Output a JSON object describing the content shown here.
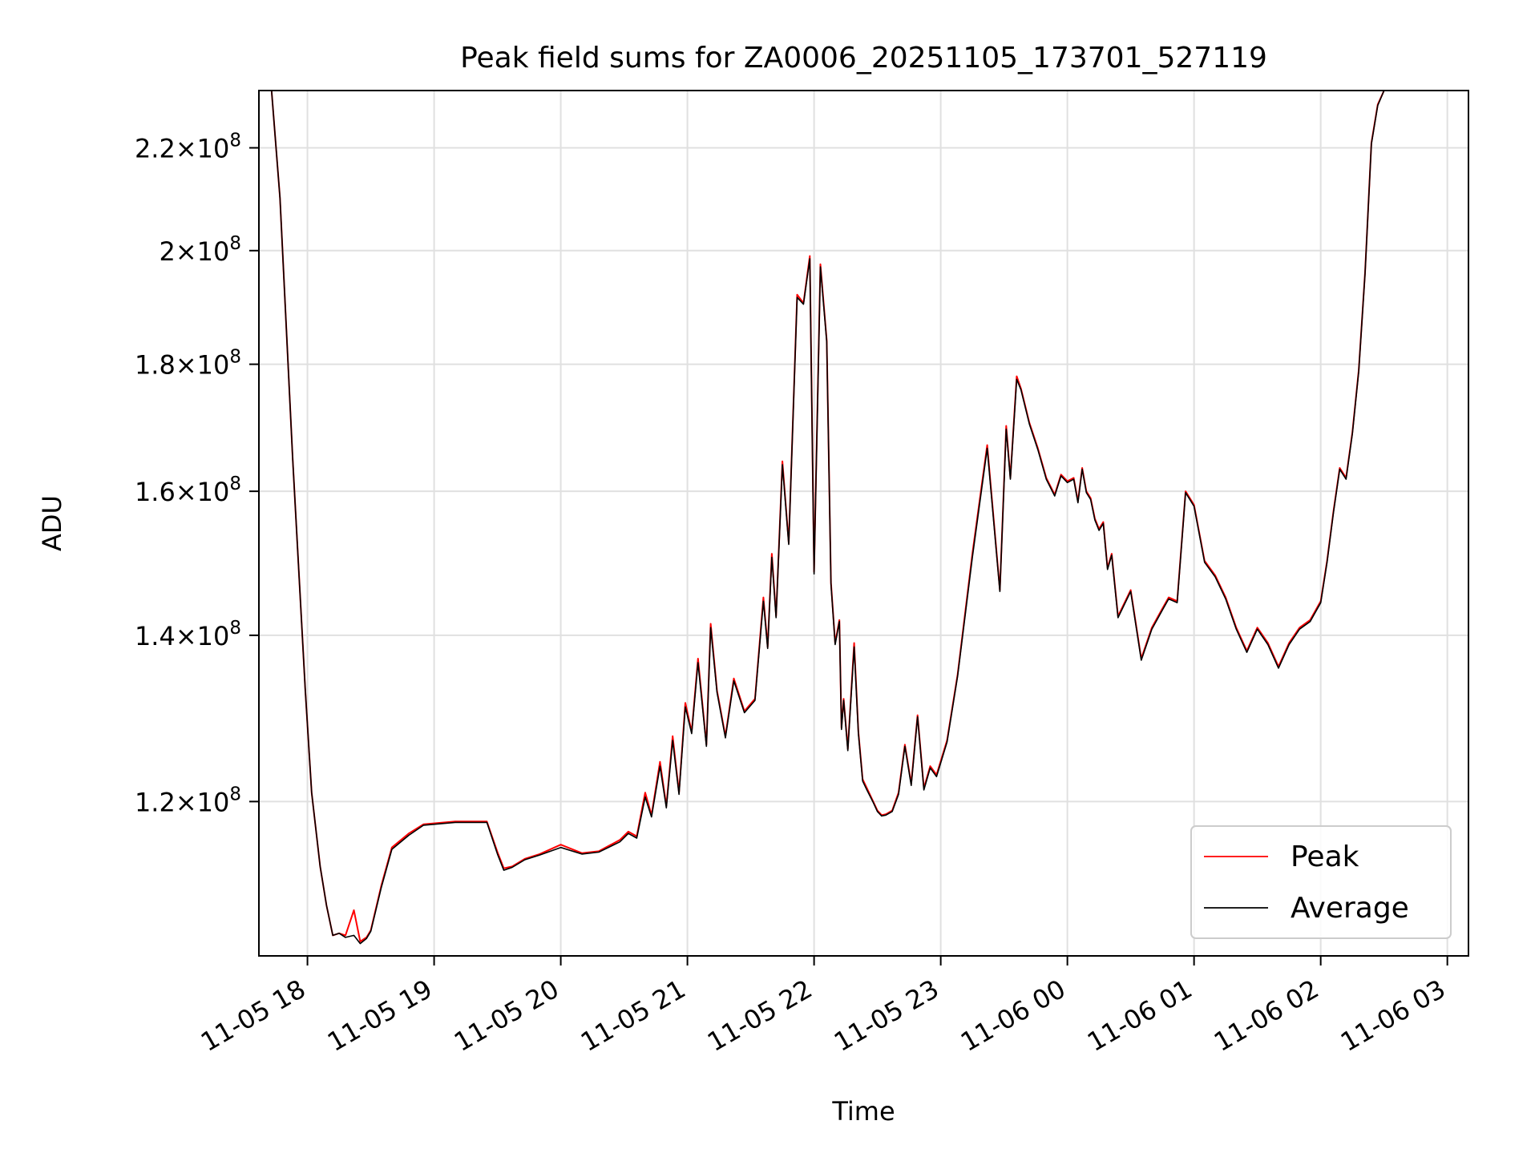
{
  "chart_data": {
    "type": "line",
    "title": "Peak field sums for ZA0006_20251105_173701_527119",
    "xlabel": "Time",
    "ylabel": "ADU",
    "yscale": "log",
    "grid": true,
    "legend_position": "lower right",
    "xlim": [
      "2025-11-05 17:37",
      "2025-11-06 03:10"
    ],
    "ylim": [
      104000000,
      232000000
    ],
    "x_ticks": [
      {
        "value": "2025-11-05 18:00",
        "label": "11-05 18"
      },
      {
        "value": "2025-11-05 19:00",
        "label": "11-05 19"
      },
      {
        "value": "2025-11-05 20:00",
        "label": "11-05 20"
      },
      {
        "value": "2025-11-05 21:00",
        "label": "11-05 21"
      },
      {
        "value": "2025-11-05 22:00",
        "label": "11-05 22"
      },
      {
        "value": "2025-11-05 23:00",
        "label": "11-05 23"
      },
      {
        "value": "2025-11-06 00:00",
        "label": "11-06 00"
      },
      {
        "value": "2025-11-06 01:00",
        "label": "11-06 01"
      },
      {
        "value": "2025-11-06 02:00",
        "label": "11-06 02"
      },
      {
        "value": "2025-11-06 03:00",
        "label": "11-06 03"
      }
    ],
    "y_ticks": [
      {
        "value": 120000000,
        "mantissa": "1.2",
        "base": "10",
        "exponent": "8"
      },
      {
        "value": 140000000,
        "mantissa": "1.4",
        "base": "10",
        "exponent": "8"
      },
      {
        "value": 160000000,
        "mantissa": "1.6",
        "base": "10",
        "exponent": "8"
      },
      {
        "value": 180000000,
        "mantissa": "1.8",
        "base": "10",
        "exponent": "8"
      },
      {
        "value": 200000000,
        "mantissa": "2",
        "base": "10",
        "exponent": "8"
      },
      {
        "value": 220000000,
        "mantissa": "2.2",
        "base": "10",
        "exponent": "8"
      }
    ],
    "times_label": "x values: timestamps (YYYY-MM-DD HH:MM), shared by both series",
    "x": [
      "2025-11-05 17:43",
      "2025-11-05 17:47",
      "2025-11-05 17:53",
      "2025-11-05 17:59",
      "2025-11-05 18:02",
      "2025-11-05 18:06",
      "2025-11-05 18:09",
      "2025-11-05 18:12",
      "2025-11-05 18:15",
      "2025-11-05 18:18",
      "2025-11-05 18:22",
      "2025-11-05 18:25",
      "2025-11-05 18:28",
      "2025-11-05 18:30",
      "2025-11-05 18:35",
      "2025-11-05 18:40",
      "2025-11-05 18:48",
      "2025-11-05 18:55",
      "2025-11-05 19:10",
      "2025-11-05 19:25",
      "2025-11-05 19:30",
      "2025-11-05 19:33",
      "2025-11-05 19:37",
      "2025-11-05 19:43",
      "2025-11-05 19:50",
      "2025-11-05 20:00",
      "2025-11-05 20:10",
      "2025-11-05 20:18",
      "2025-11-05 20:28",
      "2025-11-05 20:32",
      "2025-11-05 20:36",
      "2025-11-05 20:40",
      "2025-11-05 20:43",
      "2025-11-05 20:47",
      "2025-11-05 20:50",
      "2025-11-05 20:53",
      "2025-11-05 20:56",
      "2025-11-05 20:59",
      "2025-11-05 21:02",
      "2025-11-05 21:05",
      "2025-11-05 21:09",
      "2025-11-05 21:11",
      "2025-11-05 21:14",
      "2025-11-05 21:18",
      "2025-11-05 21:22",
      "2025-11-05 21:27",
      "2025-11-05 21:32",
      "2025-11-05 21:36",
      "2025-11-05 21:38",
      "2025-11-05 21:40",
      "2025-11-05 21:42",
      "2025-11-05 21:45",
      "2025-11-05 21:48",
      "2025-11-05 21:52",
      "2025-11-05 21:55",
      "2025-11-05 21:58",
      "2025-11-05 22:00",
      "2025-11-05 22:03",
      "2025-11-05 22:06",
      "2025-11-05 22:08",
      "2025-11-05 22:10",
      "2025-11-05 22:12",
      "2025-11-05 22:13",
      "2025-11-05 22:14",
      "2025-11-05 22:16",
      "2025-11-05 22:19",
      "2025-11-05 22:21",
      "2025-11-05 22:23",
      "2025-11-05 22:25",
      "2025-11-05 22:28",
      "2025-11-05 22:30",
      "2025-11-05 22:32",
      "2025-11-05 22:34",
      "2025-11-05 22:37",
      "2025-11-05 22:40",
      "2025-11-05 22:43",
      "2025-11-05 22:46",
      "2025-11-05 22:49",
      "2025-11-05 22:52",
      "2025-11-05 22:55",
      "2025-11-05 22:58",
      "2025-11-05 23:03",
      "2025-11-05 23:08",
      "2025-11-05 23:15",
      "2025-11-05 23:22",
      "2025-11-05 23:28",
      "2025-11-05 23:31",
      "2025-11-05 23:33",
      "2025-11-05 23:36",
      "2025-11-05 23:38",
      "2025-11-05 23:42",
      "2025-11-05 23:46",
      "2025-11-05 23:50",
      "2025-11-05 23:54",
      "2025-11-05 23:57",
      "2025-11-06 00:00",
      "2025-11-06 00:03",
      "2025-11-06 00:05",
      "2025-11-06 00:07",
      "2025-11-06 00:09",
      "2025-11-06 00:11",
      "2025-11-06 00:13",
      "2025-11-06 00:15",
      "2025-11-06 00:17",
      "2025-11-06 00:19",
      "2025-11-06 00:21",
      "2025-11-06 00:24",
      "2025-11-06 00:30",
      "2025-11-06 00:35",
      "2025-11-06 00:40",
      "2025-11-06 00:45",
      "2025-11-06 00:48",
      "2025-11-06 00:52",
      "2025-11-06 00:56",
      "2025-11-06 01:00",
      "2025-11-06 01:05",
      "2025-11-06 01:10",
      "2025-11-06 01:15",
      "2025-11-06 01:20",
      "2025-11-06 01:25",
      "2025-11-06 01:30",
      "2025-11-06 01:35",
      "2025-11-06 01:40",
      "2025-11-06 01:45",
      "2025-11-06 01:50",
      "2025-11-06 01:55",
      "2025-11-06 02:00",
      "2025-11-06 02:03",
      "2025-11-06 02:06",
      "2025-11-06 02:09",
      "2025-11-06 02:12",
      "2025-11-06 02:15",
      "2025-11-06 02:18",
      "2025-11-06 02:21",
      "2025-11-06 02:24",
      "2025-11-06 02:27",
      "2025-11-06 02:30",
      "2025-11-06 02:33",
      "2025-11-06 02:36",
      "2025-11-06 02:40",
      "2025-11-06 02:44",
      "2025-11-06 02:48",
      "2025-11-06 02:52",
      "2025-11-06 02:56",
      "2025-11-06 03:00",
      "2025-11-06 03:02",
      "2025-11-06 03:05"
    ],
    "series": [
      {
        "name": "Peak",
        "color": "#ff0000",
        "values": [
          232000000,
          210000000,
          165000000,
          133000000,
          121000000,
          113000000,
          109000000,
          106000000,
          106200000,
          106000000,
          108500000,
          105400000,
          105800000,
          106500000,
          111000000,
          115000000,
          116500000,
          117500000,
          117800000,
          117800000,
          114500000,
          112800000,
          113000000,
          113800000,
          114300000,
          115300000,
          114400000,
          114600000,
          115800000,
          116700000,
          116200000,
          121000000,
          118500000,
          124500000,
          119500000,
          127500000,
          121000000,
          131500000,
          128000000,
          137000000,
          126500000,
          141500000,
          133000000,
          127500000,
          134500000,
          130500000,
          132000000,
          145000000,
          138500000,
          151000000,
          142500000,
          164500000,
          152500000,
          192000000,
          190500000,
          199000000,
          148500000,
          197500000,
          184000000,
          147000000,
          139000000,
          142000000,
          128500000,
          132000000,
          126000000,
          139000000,
          128000000,
          122500000,
          121500000,
          120000000,
          119000000,
          118500000,
          118600000,
          119000000,
          121000000,
          126500000,
          122000000,
          130000000,
          121500000,
          124000000,
          123000000,
          127000000,
          135000000,
          151000000,
          167000000,
          146000000,
          170000000,
          162000000,
          178000000,
          176000000,
          170500000,
          166500000,
          162000000,
          159500000,
          162500000,
          161500000,
          162000000,
          158500000,
          163500000,
          160000000,
          159000000,
          156000000,
          154500000,
          155500000,
          149000000,
          151000000,
          142500000,
          146000000,
          137000000,
          141000000,
          143500000,
          145000000,
          144500000,
          160000000,
          158000000,
          150000000,
          148000000,
          145000000,
          141000000,
          138000000,
          141000000,
          139000000,
          136000000,
          139000000,
          141000000,
          142000000,
          144500000,
          150000000,
          157000000,
          163500000,
          162000000,
          169000000,
          179000000,
          196000000,
          221000000,
          229000000,
          232000000,
          232000000,
          232000000,
          232000000,
          232000000,
          232000000,
          232000000,
          232000000,
          232000000,
          232000000,
          232000000
        ]
      },
      {
        "name": "Average",
        "color": "#000000",
        "values": [
          232000000,
          210000000,
          165000000,
          133000000,
          121000000,
          113000000,
          109000000,
          106000000,
          106200000,
          105800000,
          106000000,
          105200000,
          105700000,
          106400000,
          110800000,
          114800000,
          116300000,
          117400000,
          117700000,
          117700000,
          114300000,
          112600000,
          112900000,
          113700000,
          114200000,
          115000000,
          114300000,
          114500000,
          115600000,
          116500000,
          116000000,
          120500000,
          118300000,
          124000000,
          119300000,
          127000000,
          120800000,
          131000000,
          127800000,
          136500000,
          126300000,
          141000000,
          132800000,
          127300000,
          134200000,
          130300000,
          131800000,
          144500000,
          138300000,
          150500000,
          142300000,
          164000000,
          152300000,
          191500000,
          190300000,
          198500000,
          148200000,
          197000000,
          183800000,
          146800000,
          138800000,
          141800000,
          128300000,
          131800000,
          125800000,
          138500000,
          127800000,
          122300000,
          121300000,
          119900000,
          118900000,
          118400000,
          118500000,
          118900000,
          120800000,
          126300000,
          121800000,
          129800000,
          121300000,
          123800000,
          122800000,
          126800000,
          134800000,
          150500000,
          166500000,
          145800000,
          169500000,
          161800000,
          177500000,
          175800000,
          170300000,
          166300000,
          161800000,
          159300000,
          162300000,
          161300000,
          161800000,
          158300000,
          163300000,
          159800000,
          158800000,
          155800000,
          154300000,
          155300000,
          148800000,
          150800000,
          142300000,
          145800000,
          136800000,
          140800000,
          143300000,
          144800000,
          144300000,
          159800000,
          157800000,
          149800000,
          147800000,
          144800000,
          140800000,
          137800000,
          140800000,
          138800000,
          135800000,
          138800000,
          140800000,
          141800000,
          144300000,
          149800000,
          156800000,
          163300000,
          161800000,
          168800000,
          178800000,
          195800000,
          220800000,
          228800000,
          232000000,
          232000000,
          232000000,
          232000000,
          232000000,
          232000000,
          232000000,
          232000000,
          232000000,
          232000000,
          232000000
        ]
      }
    ]
  }
}
